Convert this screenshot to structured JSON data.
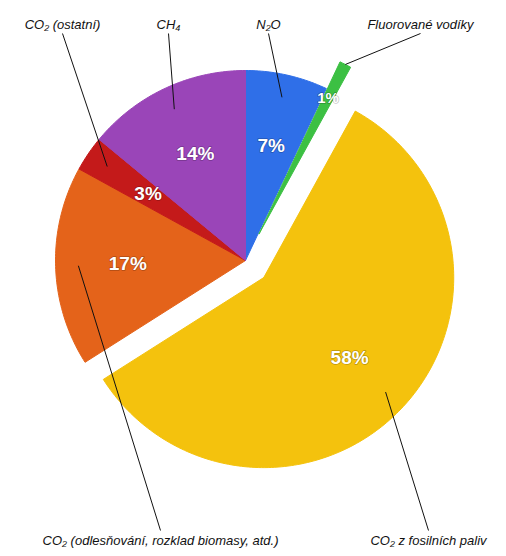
{
  "chart_data": {
    "type": "pie",
    "categories": [
      "N₂O",
      "Fluorované vodíky",
      "CO₂ z fosilních paliv",
      "CO₂ (odlesňování, rozklad biomasy, atd.)",
      "CO₂ (ostatní)",
      "CH₄"
    ],
    "values": [
      7,
      1,
      58,
      17,
      3,
      14
    ],
    "value_labels": [
      "7%",
      "1%",
      "58%",
      "17%",
      "3%",
      "14%"
    ],
    "colors": [
      "#2f6fe8",
      "#3cc043",
      "#f4c20d",
      "#e4631a",
      "#c41a1a",
      "#9a45b8"
    ],
    "data_labels": true
  }
}
